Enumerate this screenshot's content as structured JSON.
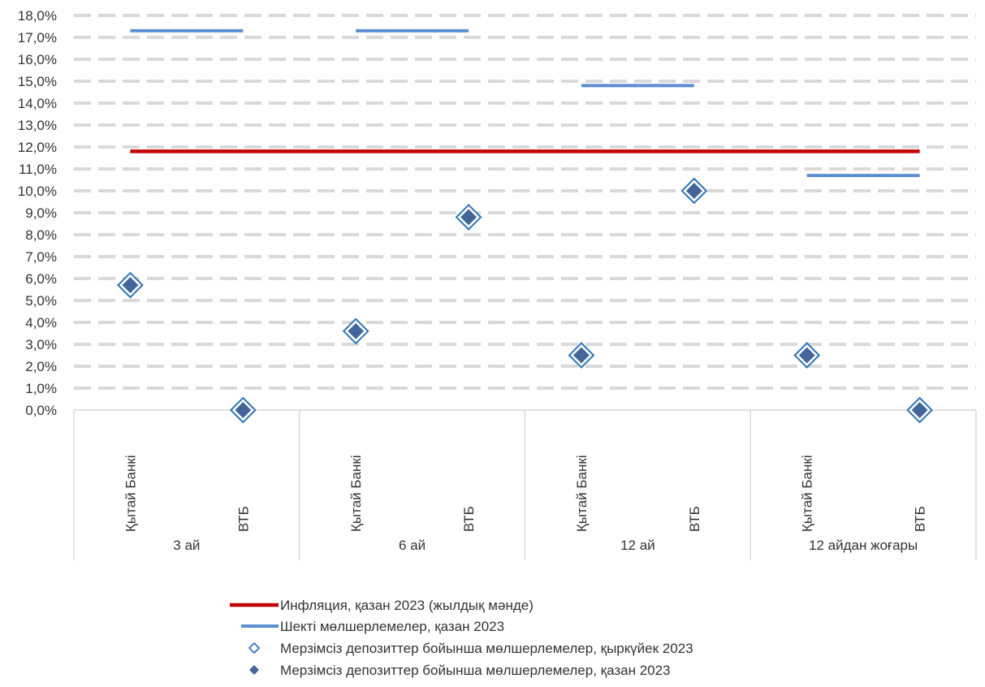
{
  "chart_data": {
    "type": "scatter",
    "title": "",
    "xlabel": "",
    "ylabel": "",
    "ylim": [
      0,
      18
    ],
    "y_tick_step": 1,
    "y_tick_format": "one-decimal-comma-percent",
    "grid": "horizontal-dashed",
    "legend_position": "bottom",
    "groups": [
      {
        "label": "3 ай",
        "categories": [
          "Қытай Банкі",
          "ВТБ"
        ]
      },
      {
        "label": "6 ай",
        "categories": [
          "Қытай Банкі",
          "ВТБ"
        ]
      },
      {
        "label": "12 ай",
        "categories": [
          "Қытай Банкі",
          "ВТБ"
        ]
      },
      {
        "label": "12 айдан жоғары",
        "categories": [
          "Қытай Банкі",
          "ВТБ"
        ]
      }
    ],
    "series": [
      {
        "name": "Инфляция, қазан 2023 (жылдық мәнде)",
        "kind": "line",
        "color": "#C00000",
        "values": [
          11.8,
          11.8,
          11.8,
          11.8,
          11.8,
          11.8,
          11.8,
          11.8
        ]
      },
      {
        "name": "Шекті мөлшерлемелер, қазан 2023",
        "kind": "segments-per-group",
        "color": "#5B8FD1",
        "values": [
          17.3,
          17.3,
          14.8,
          10.7
        ]
      },
      {
        "name": "Мерзімсіз депозиттер бойынша мөлшерлемелер, қыркүйек 2023",
        "kind": "marker-hollow",
        "color": "#2E75B6",
        "values": [
          5.7,
          0.0,
          3.6,
          8.8,
          2.5,
          10.0,
          2.5,
          0.0
        ]
      },
      {
        "name": "Мерзімсіз депозиттер бойынша мөлшерлемелер, қазан 2023",
        "kind": "marker-filled",
        "color": "#44659A",
        "values": [
          5.7,
          0.0,
          3.6,
          8.8,
          2.5,
          10.0,
          2.5,
          0.0
        ]
      }
    ]
  }
}
